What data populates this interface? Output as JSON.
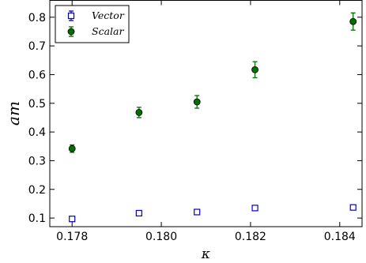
{
  "chart_data": {
    "type": "scatter",
    "xlabel": "κ",
    "ylabel": "am",
    "xlim": [
      0.1775,
      0.1845
    ],
    "ylim": [
      0.07,
      0.86
    ],
    "x_ticks": [
      "0.178",
      "0.180",
      "0.182",
      "0.184"
    ],
    "y_ticks": [
      "0.1",
      "0.2",
      "0.3",
      "0.4",
      "0.5",
      "0.6",
      "0.7",
      "0.8"
    ],
    "grid": false,
    "legend_position": "top-left",
    "series": [
      {
        "name": "Vector",
        "marker": "square-open",
        "color": "#0000cc",
        "x": [
          0.178,
          0.1795,
          0.1808,
          0.1821,
          0.1843
        ],
        "y": [
          0.097,
          0.117,
          0.121,
          0.135,
          0.137
        ],
        "err": [
          0.006,
          0.006,
          0.006,
          0.007,
          0.008
        ]
      },
      {
        "name": "Scalar",
        "marker": "circle-filled",
        "color": "#007000",
        "x": [
          0.178,
          0.1795,
          0.1808,
          0.1821,
          0.1843
        ],
        "y": [
          0.342,
          0.468,
          0.505,
          0.617,
          0.785
        ],
        "err": [
          0.013,
          0.018,
          0.022,
          0.028,
          0.03
        ]
      }
    ]
  }
}
